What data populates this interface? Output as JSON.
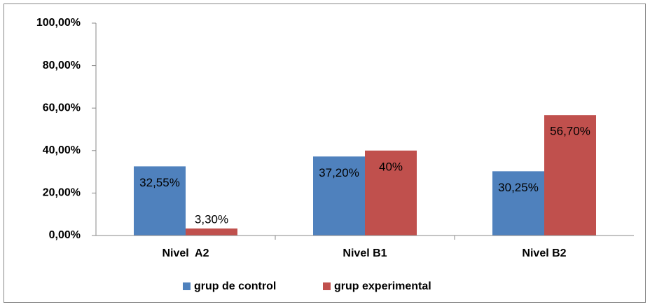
{
  "chart_data": {
    "type": "bar",
    "categories": [
      "Nivel  A2",
      "Nivel B1",
      "Nivel B2"
    ],
    "series": [
      {
        "name": "grup de control",
        "color": "#4f81bd",
        "values": [
          32.55,
          37.2,
          30.25
        ],
        "value_labels": [
          "32,55%",
          "37,20%",
          "30,25%"
        ]
      },
      {
        "name": "grup experimental",
        "color": "#c0504d",
        "values": [
          3.3,
          40,
          56.7
        ],
        "value_labels": [
          "3,30%",
          "40%",
          "56,70%"
        ]
      }
    ],
    "ylim": [
      0,
      100
    ],
    "yticks": [
      {
        "value": 0,
        "label": "0,00%"
      },
      {
        "value": 20,
        "label": "20,00%"
      },
      {
        "value": 40,
        "label": "40,00%"
      },
      {
        "value": 60,
        "label": "60,00%"
      },
      {
        "value": 80,
        "label": "80,00%"
      },
      {
        "value": 100,
        "label": "100,00%"
      }
    ],
    "legend": "bottom"
  }
}
